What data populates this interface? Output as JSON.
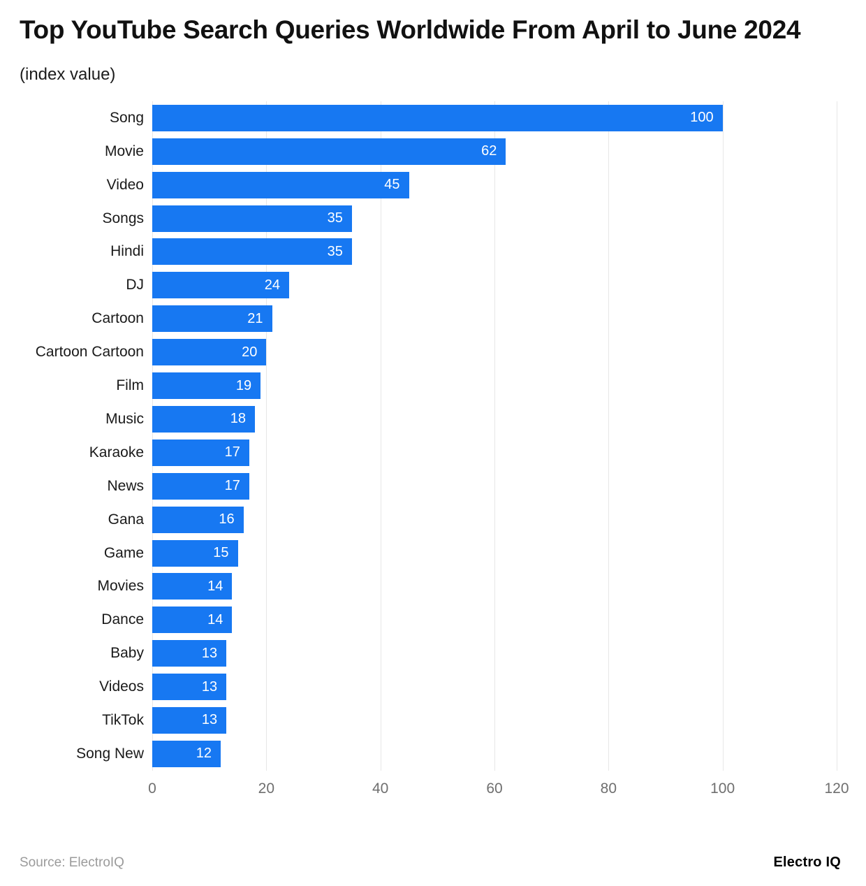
{
  "header": {
    "title": "Top YouTube Search Queries Worldwide From April to June 2024",
    "subtitle": "(index value)"
  },
  "footer": {
    "source": "Source: ElectroIQ",
    "brand": "Electro IQ"
  },
  "colors": {
    "bar": "#1778F2",
    "grid": "#e7e7e7",
    "tick_text": "#6f6f6f",
    "title_text": "#111111",
    "value_text": "#ffffff"
  },
  "chart_data": {
    "type": "bar",
    "orientation": "horizontal",
    "title": "Top YouTube Search Queries Worldwide From April to June 2024",
    "subtitle": "(index value)",
    "xlabel": "",
    "ylabel": "",
    "xlim": [
      0,
      120
    ],
    "xticks": [
      0,
      20,
      40,
      60,
      80,
      100,
      120
    ],
    "grid": true,
    "value_labels": "inside-end",
    "categories": [
      "Song",
      "Movie",
      "Video",
      "Songs",
      "Hindi",
      "DJ",
      "Cartoon",
      "Cartoon Cartoon",
      "Film",
      "Music",
      "Karaoke",
      "News",
      "Gana",
      "Game",
      "Movies",
      "Dance",
      "Baby",
      "Videos",
      "TikTok",
      "Song New"
    ],
    "values": [
      100,
      62,
      45,
      35,
      35,
      24,
      21,
      20,
      19,
      18,
      17,
      17,
      16,
      15,
      14,
      14,
      13,
      13,
      13,
      12
    ]
  }
}
